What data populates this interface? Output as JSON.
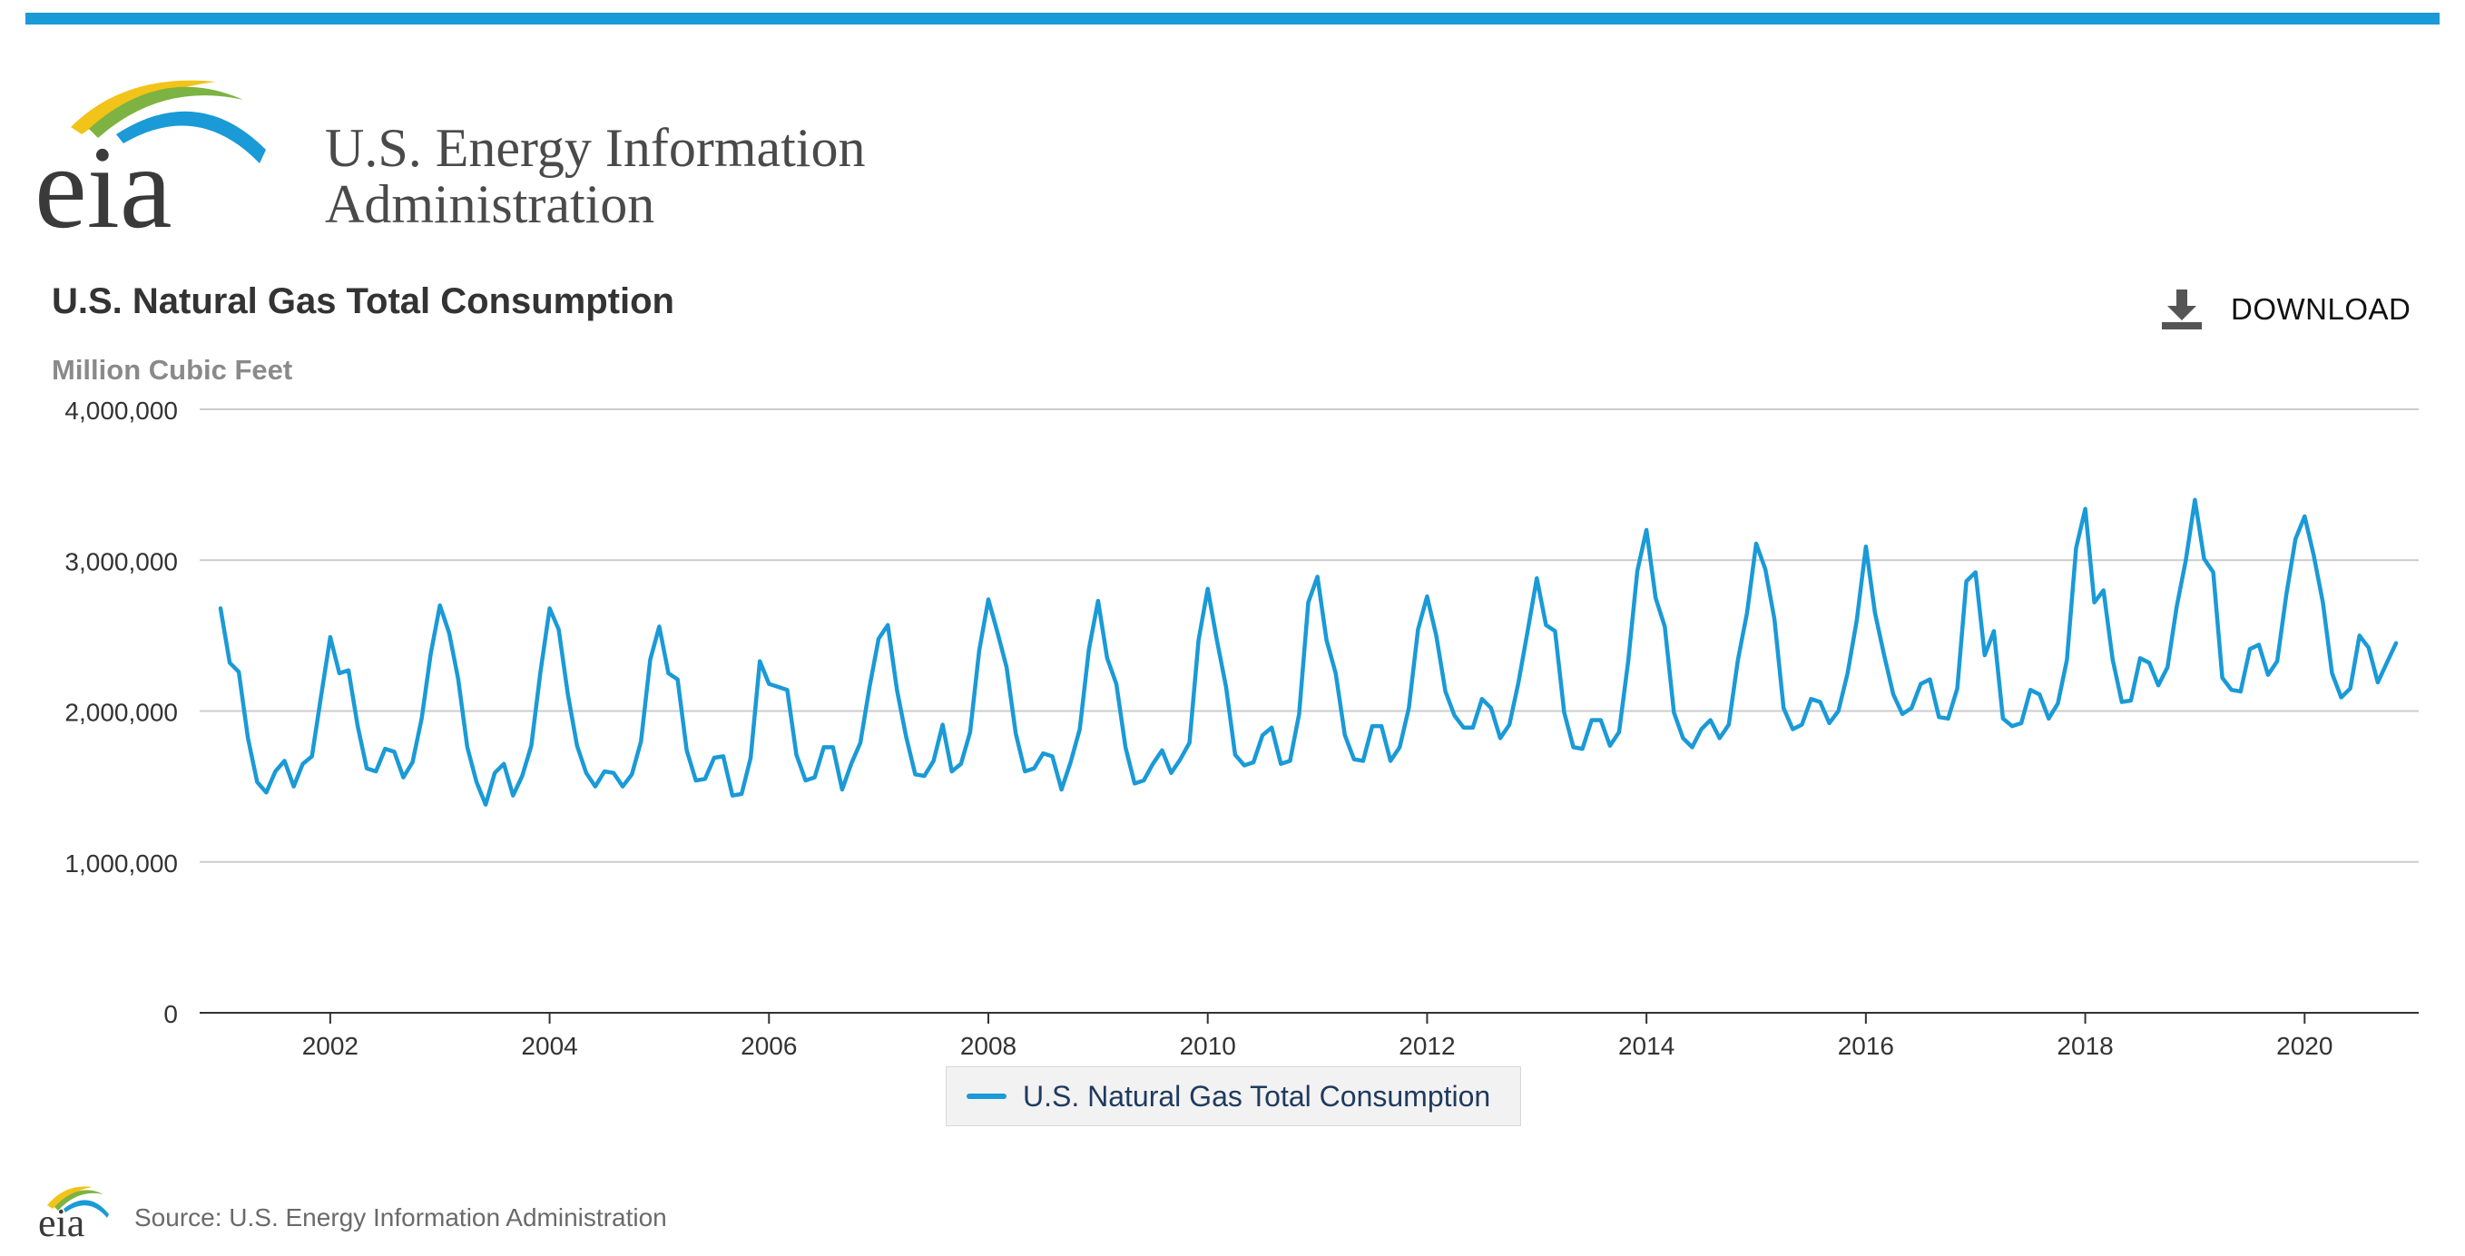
{
  "header": {
    "org_line1": "U.S. Energy Information",
    "org_line2": "Administration",
    "logo_text": "eia"
  },
  "toolbar": {
    "download_label": "DOWNLOAD",
    "download_icon": "download-icon"
  },
  "colors": {
    "accent": "#1a9ad7",
    "grid": "#cccccc",
    "axis": "#333333"
  },
  "footer": {
    "source": "Source: U.S. Energy Information Administration"
  },
  "chart_data": {
    "type": "line",
    "title": "U.S. Natural Gas Total Consumption",
    "subtitle": "Million Cubic Feet",
    "xlabel": "",
    "ylabel": "",
    "ylim": [
      0,
      4000000
    ],
    "y_ticks": [
      "0",
      "1,000,000",
      "2,000,000",
      "3,000,000",
      "4,000,000"
    ],
    "y_tick_values": [
      0,
      1000000,
      2000000,
      3000000,
      4000000
    ],
    "x_ticks": [
      "2002",
      "2004",
      "2006",
      "2008",
      "2010",
      "2012",
      "2014",
      "2016",
      "2018",
      "2020"
    ],
    "x_tick_years": [
      2002,
      2004,
      2006,
      2008,
      2010,
      2012,
      2014,
      2016,
      2018,
      2020
    ],
    "x_range": [
      "2001-01",
      "2020-11"
    ],
    "grid": true,
    "legend_position": "bottom-center",
    "x_start": "2001-01",
    "series": [
      {
        "name": "U.S. Natural Gas Total Consumption",
        "color": "#1a9ad7",
        "values": [
          2680000,
          2320000,
          2260000,
          1820000,
          1530000,
          1460000,
          1600000,
          1670000,
          1500000,
          1650000,
          1700000,
          2100000,
          2490000,
          2250000,
          2270000,
          1900000,
          1620000,
          1600000,
          1750000,
          1730000,
          1560000,
          1660000,
          1950000,
          2380000,
          2700000,
          2520000,
          2210000,
          1760000,
          1530000,
          1380000,
          1590000,
          1650000,
          1440000,
          1570000,
          1770000,
          2260000,
          2680000,
          2540000,
          2110000,
          1770000,
          1590000,
          1500000,
          1600000,
          1590000,
          1500000,
          1580000,
          1800000,
          2340000,
          2560000,
          2250000,
          2210000,
          1740000,
          1540000,
          1550000,
          1690000,
          1700000,
          1440000,
          1450000,
          1690000,
          2330000,
          2180000,
          2160000,
          2140000,
          1710000,
          1540000,
          1560000,
          1760000,
          1760000,
          1480000,
          1650000,
          1790000,
          2160000,
          2480000,
          2570000,
          2140000,
          1830000,
          1580000,
          1570000,
          1670000,
          1910000,
          1600000,
          1650000,
          1860000,
          2400000,
          2740000,
          2520000,
          2290000,
          1850000,
          1600000,
          1620000,
          1720000,
          1700000,
          1480000,
          1660000,
          1880000,
          2410000,
          2730000,
          2350000,
          2180000,
          1760000,
          1520000,
          1540000,
          1650000,
          1740000,
          1590000,
          1680000,
          1790000,
          2470000,
          2810000,
          2470000,
          2160000,
          1710000,
          1640000,
          1660000,
          1840000,
          1890000,
          1650000,
          1670000,
          1980000,
          2720000,
          2890000,
          2470000,
          2250000,
          1840000,
          1680000,
          1670000,
          1900000,
          1900000,
          1670000,
          1760000,
          2020000,
          2540000,
          2760000,
          2500000,
          2130000,
          1970000,
          1890000,
          1890000,
          2080000,
          2020000,
          1820000,
          1910000,
          2190000,
          2530000,
          2880000,
          2570000,
          2530000,
          1990000,
          1760000,
          1750000,
          1940000,
          1940000,
          1770000,
          1860000,
          2330000,
          2930000,
          3200000,
          2750000,
          2560000,
          1990000,
          1820000,
          1760000,
          1880000,
          1940000,
          1820000,
          1910000,
          2340000,
          2650000,
          3110000,
          2940000,
          2610000,
          2020000,
          1880000,
          1910000,
          2080000,
          2060000,
          1920000,
          2000000,
          2250000,
          2600000,
          3090000,
          2650000,
          2370000,
          2110000,
          1980000,
          2020000,
          2180000,
          2210000,
          1960000,
          1950000,
          2150000,
          2860000,
          2920000,
          2370000,
          2530000,
          1950000,
          1900000,
          1920000,
          2140000,
          2110000,
          1950000,
          2050000,
          2340000,
          3080000,
          3340000,
          2720000,
          2800000,
          2340000,
          2060000,
          2070000,
          2350000,
          2320000,
          2170000,
          2290000,
          2690000,
          3000000,
          3400000,
          3010000,
          2920000,
          2220000,
          2140000,
          2130000,
          2410000,
          2440000,
          2240000,
          2330000,
          2770000,
          3140000,
          3290000,
          3030000,
          2720000,
          2250000,
          2090000,
          2150000,
          2500000,
          2420000,
          2190000,
          2320000,
          2450000
        ]
      }
    ]
  }
}
